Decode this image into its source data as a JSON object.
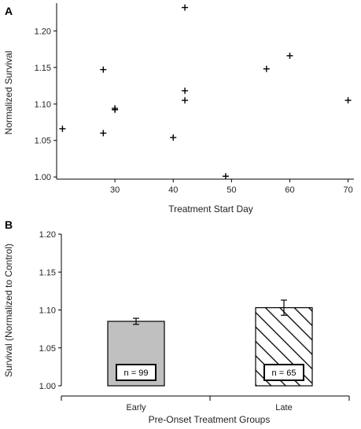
{
  "chart_data": [
    {
      "panel": "A",
      "type": "scatter",
      "xlabel": "Treatment Start Day",
      "ylabel": "Normalized Survival",
      "xlim": [
        20,
        71
      ],
      "ylim": [
        0.997,
        1.238
      ],
      "xticks": [
        "30",
        "40",
        "50",
        "60",
        "70"
      ],
      "yticks": [
        "1.00",
        "1.05",
        "1.10",
        "1.15",
        "1.20"
      ],
      "marker": "plus",
      "color": "#000000",
      "points": [
        {
          "x": 21,
          "y": 1.066
        },
        {
          "x": 28,
          "y": 1.147
        },
        {
          "x": 28,
          "y": 1.06
        },
        {
          "x": 30,
          "y": 1.092
        },
        {
          "x": 30,
          "y": 1.094
        },
        {
          "x": 40,
          "y": 1.054
        },
        {
          "x": 42,
          "y": 1.232
        },
        {
          "x": 42,
          "y": 1.118
        },
        {
          "x": 42,
          "y": 1.105
        },
        {
          "x": 49,
          "y": 1.001
        },
        {
          "x": 56,
          "y": 1.148
        },
        {
          "x": 60,
          "y": 1.166
        },
        {
          "x": 70,
          "y": 1.105
        }
      ]
    },
    {
      "panel": "B",
      "type": "bar",
      "xlabel": "Pre-Onset Treatment Groups",
      "ylabel": "Survival (Normalized to Control)",
      "ylim": [
        1.0,
        1.2
      ],
      "yticks": [
        "1.00",
        "1.05",
        "1.10",
        "1.15",
        "1.20"
      ],
      "categories": [
        "Early",
        "Late"
      ],
      "values": [
        1.085,
        1.103
      ],
      "errors": [
        0.004,
        0.01
      ],
      "n_labels": [
        "n = 99",
        "n = 65"
      ],
      "fills": [
        "solid-gray",
        "diagonal-hatch"
      ],
      "bar_color": "#c0c0c0"
    }
  ]
}
